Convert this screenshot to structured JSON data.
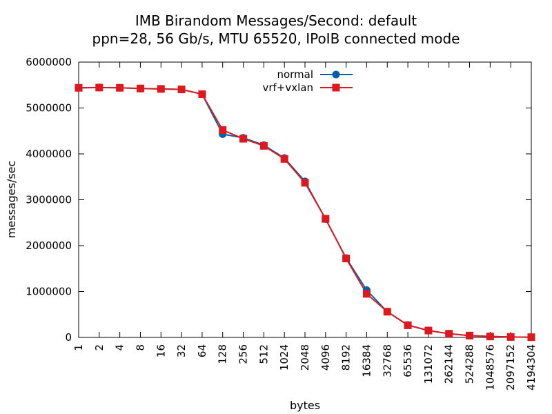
{
  "chart_data": {
    "type": "line",
    "title": "IMB Birandom Messages/Second: default",
    "subtitle": "ppn=28, 56 Gb/s, MTU 65520, IPoIB connected mode",
    "xlabel": "bytes",
    "ylabel": "messages/sec",
    "categories": [
      "1",
      "2",
      "4",
      "8",
      "16",
      "32",
      "64",
      "128",
      "256",
      "512",
      "1024",
      "2048",
      "4096",
      "8192",
      "16384",
      "32768",
      "65536",
      "131072",
      "262144",
      "524288",
      "1048576",
      "2097152",
      "4194304"
    ],
    "y_ticks": [
      "0",
      "1000000",
      "2000000",
      "3000000",
      "4000000",
      "5000000",
      "6000000"
    ],
    "ylim": [
      0,
      6000000
    ],
    "grid": false,
    "legend_position": "top-center",
    "series": [
      {
        "name": "normal",
        "color": "#0060ad",
        "marker": "circle",
        "values": [
          5440000,
          5445000,
          5440000,
          5425000,
          5415000,
          5405000,
          5300000,
          4430000,
          4350000,
          4190000,
          3910000,
          3400000,
          2580000,
          1730000,
          1030000,
          560000,
          270000,
          150000,
          80000,
          40000,
          20000,
          10000,
          5000
        ]
      },
      {
        "name": "vrf+vxlan",
        "color": "#dd181f",
        "marker": "square",
        "values": [
          5440000,
          5445000,
          5440000,
          5425000,
          5415000,
          5405000,
          5300000,
          4520000,
          4330000,
          4175000,
          3890000,
          3370000,
          2585000,
          1720000,
          950000,
          560000,
          265000,
          150000,
          80000,
          40000,
          20000,
          10000,
          5000
        ]
      }
    ]
  }
}
